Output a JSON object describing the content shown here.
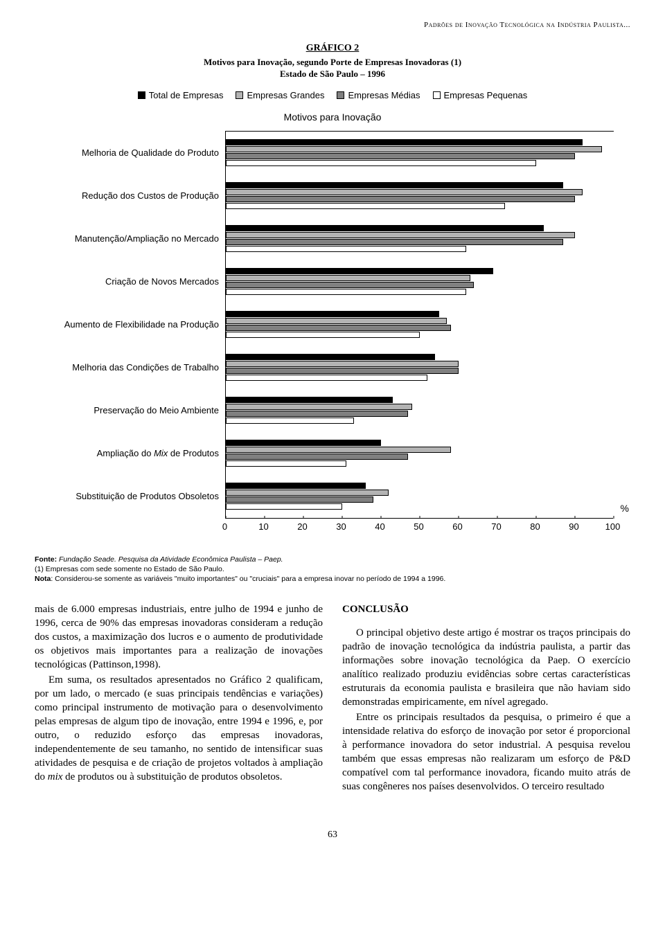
{
  "running_head": "Padrões de Inovação Tecnológica na Indústria Paulista...",
  "chart": {
    "type": "horizontal_grouped_bar",
    "title": "GRÁFICO 2",
    "subtitle_line1": "Motivos para Inovação, segundo Porte de Empresas Inovadoras (1)",
    "subtitle_line2": "Estado de São Paulo – 1996",
    "inner_title": "Motivos para Inovação",
    "legend": [
      {
        "label": "Total de Empresas",
        "color": "#000000"
      },
      {
        "label": "Empresas Grandes",
        "color": "#b3b3b3"
      },
      {
        "label": "Empresas Médias",
        "color": "#808080"
      },
      {
        "label": "Empresas Pequenas",
        "color": "#ffffff"
      }
    ],
    "x_axis": {
      "min": 0,
      "max": 100,
      "ticks": [
        0,
        10,
        20,
        30,
        40,
        50,
        60,
        70,
        80,
        90,
        100
      ],
      "unit_label": "%"
    },
    "bar_border_color": "#000000",
    "categories": [
      {
        "label": "Melhoria de Qualidade do Produto",
        "values": {
          "total": 92,
          "grandes": 97,
          "medias": 90,
          "pequenas": 80
        }
      },
      {
        "label": "Redução dos Custos de Produção",
        "values": {
          "total": 87,
          "grandes": 92,
          "medias": 90,
          "pequenas": 72
        }
      },
      {
        "label": "Manutenção/Ampliação no Mercado",
        "values": {
          "total": 82,
          "grandes": 90,
          "medias": 87,
          "pequenas": 62
        }
      },
      {
        "label": "Criação de Novos Mercados",
        "values": {
          "total": 69,
          "grandes": 63,
          "medias": 64,
          "pequenas": 62
        }
      },
      {
        "label": "Aumento de Flexibilidade na Produção",
        "values": {
          "total": 55,
          "grandes": 57,
          "medias": 58,
          "pequenas": 50
        }
      },
      {
        "label": "Melhoria das Condições de Trabalho",
        "values": {
          "total": 54,
          "grandes": 60,
          "medias": 60,
          "pequenas": 52
        }
      },
      {
        "label": "Preservação do Meio Ambiente",
        "values": {
          "total": 43,
          "grandes": 48,
          "medias": 47,
          "pequenas": 33
        }
      },
      {
        "label": "Ampliação do Mix de Produtos",
        "html_label": "Ampliação do <span class=\"mix-italic\">Mix</span> de Produtos",
        "values": {
          "total": 40,
          "grandes": 58,
          "medias": 47,
          "pequenas": 31
        }
      },
      {
        "label": "Substituição de Produtos Obsoletos",
        "values": {
          "total": 36,
          "grandes": 42,
          "medias": 38,
          "pequenas": 30
        }
      }
    ]
  },
  "footnotes": {
    "fonte_label": "Fonte:",
    "fonte_text": "Fundação Seade. Pesquisa da Atividade Econômica Paulista – Paep.",
    "line1": "(1) Empresas com sede somente no Estado de São Paulo.",
    "nota_label": "Nota",
    "nota_text": ": Considerou-se somente as variáveis \"muito importantes\" ou \"cruciais\" para a empresa inovar no período de 1994 a 1996."
  },
  "body": {
    "col1_p1": "mais de 6.000 empresas industriais, entre julho de 1994 e junho de 1996, cerca de 90% das empresas inovadoras consideram a redução dos custos, a maximização dos lucros e o aumento de produtividade os objetivos mais importantes para a realização de inovações tecnológicas (Pattinson,1998).",
    "col1_p2_a": "Em suma, os resultados apresentados no Gráfico 2 qualificam, por um lado, o mercado (e suas principais tendências e variações) como principal instrumento de motivação para o desenvolvimento pelas empresas de algum tipo de inovação, entre 1994 e 1996, e, por outro, o reduzido esforço das empresas inovadoras, independentemente de seu tamanho, no sentido de intensificar suas atividades de pesquisa e de criação de projetos voltados à ampliação do ",
    "col1_p2_mix": "mix",
    "col1_p2_b": " de produtos ou à substituição de produtos obsoletos.",
    "col2_heading": "CONCLUSÃO",
    "col2_p1": "O principal objetivo deste artigo é mostrar os traços principais do padrão de inovação tecnológica da indústria paulista, a partir das informações sobre inovação tecnológica da Paep. O exercício analítico realizado produziu evidências sobre certas características estruturais da economia paulista e brasileira que não haviam sido demonstradas empiricamente, em nível agregado.",
    "col2_p2": "Entre os principais resultados da pesquisa, o primeiro é que a intensidade relativa do esforço de inovação por setor é proporcional à performance inovadora do setor industrial. A pesquisa revelou também que essas empresas não realizaram um esforço de P&D compatível com tal performance inovadora, ficando muito atrás de suas congêneres nos países desenvolvidos. O terceiro resultado"
  },
  "page_number": "63"
}
